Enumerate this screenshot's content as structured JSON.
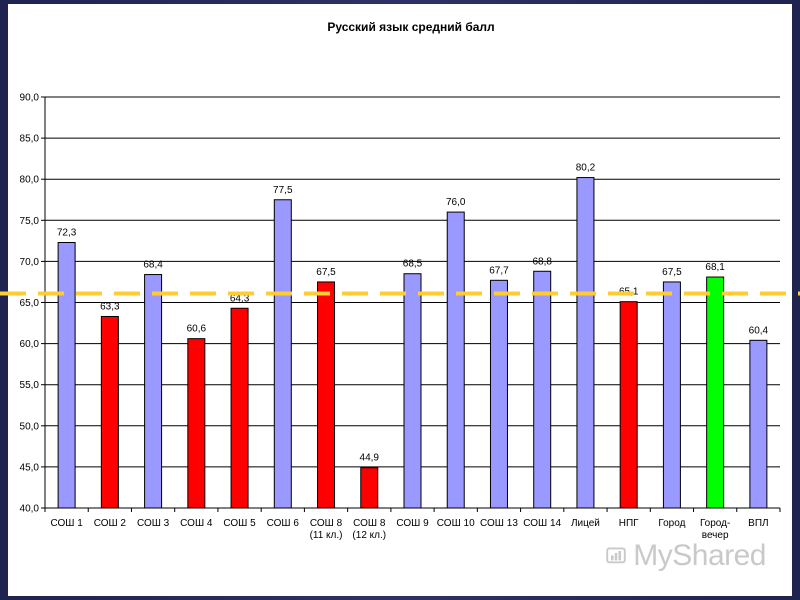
{
  "chart_data": {
    "type": "bar",
    "title": "Русский язык средний балл",
    "categories": [
      [
        "СОШ 1"
      ],
      [
        "СОШ 2"
      ],
      [
        "СОШ 3"
      ],
      [
        "СОШ 4"
      ],
      [
        "СОШ 5"
      ],
      [
        "СОШ 6"
      ],
      [
        "СОШ 8",
        "(11 кл.)"
      ],
      [
        "СОШ 8",
        "(12 кл.)"
      ],
      [
        "СОШ 9"
      ],
      [
        "СОШ 10"
      ],
      [
        "СОШ 13"
      ],
      [
        "СОШ 14"
      ],
      [
        "Лицей"
      ],
      [
        "НПГ"
      ],
      [
        "Город"
      ],
      [
        "Город-",
        "вечер"
      ],
      [
        "ВПЛ"
      ]
    ],
    "values": [
      72.3,
      63.3,
      68.4,
      60.6,
      64.3,
      77.5,
      67.5,
      44.9,
      68.5,
      76.0,
      67.7,
      68.8,
      80.2,
      65.1,
      67.5,
      68.1,
      60.4
    ],
    "value_labels": [
      "72,3",
      "63,3",
      "68,4",
      "60,6",
      "64,3",
      "77,5",
      "67,5",
      "44,9",
      "68,5",
      "76,0",
      "67,7",
      "68,8",
      "80,2",
      "65,1",
      "67,5",
      "68,1",
      "60,4"
    ],
    "bar_colors": [
      "#9999ff",
      "#ff0000",
      "#9999ff",
      "#ff0000",
      "#ff0000",
      "#9999ff",
      "#ff0000",
      "#ff0000",
      "#9999ff",
      "#9999ff",
      "#9999ff",
      "#9999ff",
      "#9999ff",
      "#ff0000",
      "#9999ff",
      "#00ff00",
      "#9999ff"
    ],
    "ylim": [
      40.0,
      90.0
    ],
    "y_ticks": [
      40.0,
      45.0,
      50.0,
      55.0,
      60.0,
      65.0,
      70.0,
      75.0,
      80.0,
      85.0,
      90.0
    ],
    "y_tick_labels": [
      "40,0",
      "45,0",
      "50,0",
      "55,0",
      "60,0",
      "65,0",
      "70,0",
      "75,0",
      "80,0",
      "85,0",
      "90,0"
    ],
    "grid": true,
    "reference_line": {
      "value": 66.1,
      "color": "#ffcc33",
      "style": "dashed"
    },
    "xlabel": "",
    "ylabel": ""
  },
  "watermark": {
    "text": "MyShared"
  }
}
